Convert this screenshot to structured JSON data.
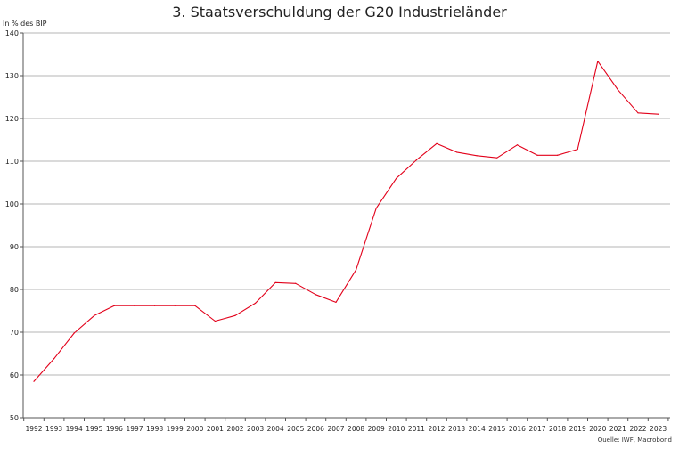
{
  "chart_data": {
    "type": "line",
    "title": "3. Staatsverschuldung der G20 Industrieländer",
    "ylabel": "In % des BIP",
    "source": "Quelle: IWF, Macrobond",
    "ylim": [
      50,
      140
    ],
    "yticks": [
      50,
      60,
      70,
      80,
      90,
      100,
      110,
      120,
      130,
      140
    ],
    "grid": true,
    "x": [
      "1992",
      "1993",
      "1994",
      "1995",
      "1996",
      "1997",
      "1998",
      "1999",
      "2000",
      "2001",
      "2002",
      "2003",
      "2004",
      "2005",
      "2006",
      "2007",
      "2008",
      "2009",
      "2010",
      "2011",
      "2012",
      "2013",
      "2014",
      "2015",
      "2016",
      "2017",
      "2018",
      "2019",
      "2020",
      "2021",
      "2022",
      "2023"
    ],
    "series": [
      {
        "color": "#e2001a",
        "values": [
          58.5,
          63.8,
          69.8,
          73.9,
          76.2,
          76.2,
          76.2,
          76.2,
          76.2,
          72.6,
          73.9,
          76.8,
          81.6,
          81.4,
          78.8,
          77.0,
          84.6,
          99.0,
          106.0,
          110.3,
          114.1,
          112.1,
          111.3,
          110.8,
          113.8,
          111.4,
          111.4,
          112.8,
          133.4,
          126.7,
          121.3,
          121.0
        ]
      }
    ]
  }
}
